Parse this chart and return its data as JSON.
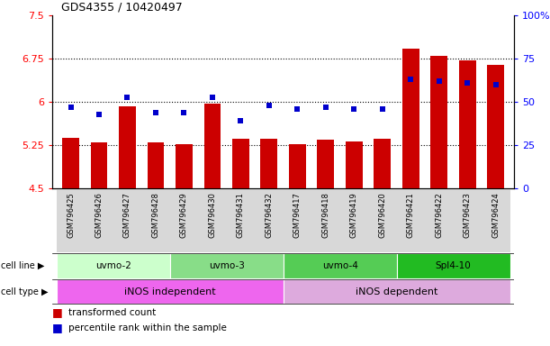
{
  "title": "GDS4355 / 10420497",
  "samples": [
    "GSM796425",
    "GSM796426",
    "GSM796427",
    "GSM796428",
    "GSM796429",
    "GSM796430",
    "GSM796431",
    "GSM796432",
    "GSM796417",
    "GSM796418",
    "GSM796419",
    "GSM796420",
    "GSM796421",
    "GSM796422",
    "GSM796423",
    "GSM796424"
  ],
  "bar_values": [
    5.38,
    5.3,
    5.93,
    5.3,
    5.27,
    5.98,
    5.37,
    5.37,
    5.27,
    5.35,
    5.32,
    5.37,
    6.93,
    6.8,
    6.73,
    6.65
  ],
  "dot_values_pct": [
    47,
    43,
    53,
    44,
    44,
    53,
    39,
    48,
    46,
    47,
    46,
    46,
    63,
    62,
    61,
    60
  ],
  "ylim_left": [
    4.5,
    7.5
  ],
  "ylim_right": [
    0,
    100
  ],
  "yticks_left": [
    4.5,
    5.25,
    6.0,
    6.75,
    7.5
  ],
  "yticks_left_labels": [
    "4.5",
    "5.25",
    "6",
    "6.75",
    "7.5"
  ],
  "yticks_right": [
    0,
    25,
    50,
    75,
    100
  ],
  "yticks_right_labels": [
    "0",
    "25",
    "50",
    "75",
    "100%"
  ],
  "hlines": [
    5.25,
    6.0,
    6.75
  ],
  "bar_color": "#cc0000",
  "dot_color": "#0000cc",
  "cell_lines": [
    {
      "label": "uvmo-2",
      "start": 0,
      "end": 3,
      "color": "#ccffcc"
    },
    {
      "label": "uvmo-3",
      "start": 4,
      "end": 7,
      "color": "#88dd88"
    },
    {
      "label": "uvmo-4",
      "start": 8,
      "end": 11,
      "color": "#55cc55"
    },
    {
      "label": "Spl4-10",
      "start": 12,
      "end": 15,
      "color": "#22bb22"
    }
  ],
  "cell_types": [
    {
      "label": "iNOS independent",
      "start": 0,
      "end": 7,
      "color": "#ee66ee"
    },
    {
      "label": "iNOS dependent",
      "start": 8,
      "end": 15,
      "color": "#ddaadd"
    }
  ],
  "legend_bar_label": "transformed count",
  "legend_dot_label": "percentile rank within the sample",
  "cell_line_label": "cell line",
  "cell_type_label": "cell type",
  "bar_width": 0.6,
  "xlim": [
    -0.65,
    15.65
  ]
}
